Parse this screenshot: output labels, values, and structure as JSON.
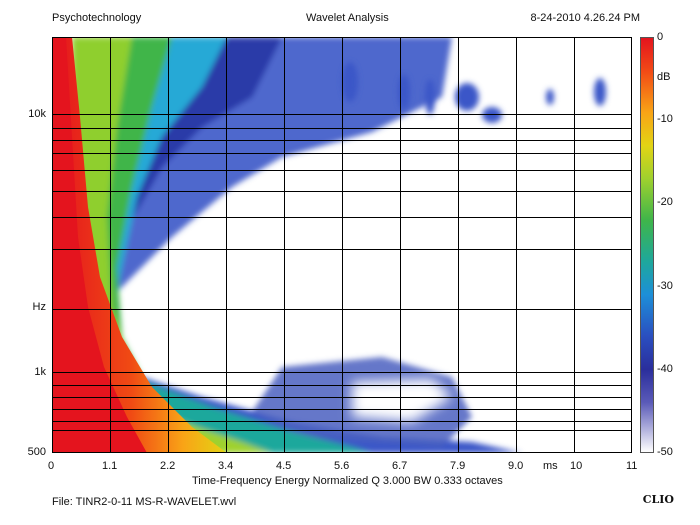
{
  "header": {
    "app_name": "Psychotechnology",
    "title": "Wavelet Analysis",
    "timestamp": "8-24-2010 4.26.24 PM"
  },
  "footer": {
    "file": "File: TINR2-0-11 MS-R-WAVELET.wvl",
    "brand": "CLIO"
  },
  "chart_data": {
    "type": "heatmap",
    "title": "Wavelet Analysis",
    "xlabel": "Time-Frequency Energy  Normalized  Q 3.000 BW 0.333 octaves",
    "x_unit": "ms",
    "y_unit": "Hz",
    "xlim": [
      0,
      11
    ],
    "ylim": [
      500,
      20000
    ],
    "y_scale": "log",
    "x_ticks": [
      "0",
      "1.1",
      "2.2",
      "3.4",
      "4.5",
      "5.6",
      "6.7",
      "7.9",
      "9.0",
      "10",
      "11"
    ],
    "y_ticks": [
      "10k",
      "Hz",
      "1k",
      "500"
    ],
    "colorbar": {
      "unit": "dB",
      "range": [
        -50,
        0
      ],
      "ticks": [
        "0",
        "-10",
        "-20",
        "-30",
        "-40",
        "-50"
      ]
    },
    "grid": true,
    "colors": {
      "high": "#e4141e",
      "mid": "#3fb54a",
      "low": "#2a2e9c",
      "floor": "#ffffff"
    }
  }
}
